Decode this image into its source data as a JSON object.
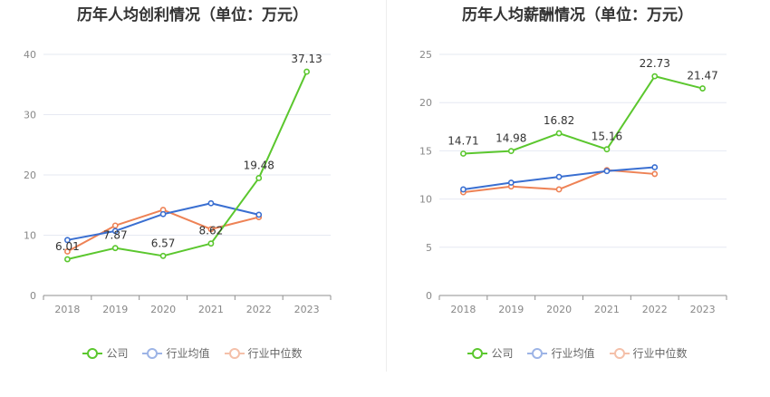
{
  "charts": [
    {
      "title": "历年人均创利情况（单位：万元）",
      "legend": [
        "公司",
        "行业均值",
        "行业中位数"
      ]
    },
    {
      "title": "历年人均薪酬情况（单位：万元）",
      "legend": [
        "公司",
        "行业均值",
        "行业中位数"
      ]
    }
  ],
  "colors": {
    "company": "#5bc72e",
    "avg": "#3a6fd1",
    "median": "#ee8255"
  },
  "chart_data": [
    {
      "type": "line",
      "title": "历年人均创利情况（单位：万元）",
      "categories": [
        "2018",
        "2019",
        "2020",
        "2021",
        "2022",
        "2023"
      ],
      "ylim": [
        0,
        40
      ],
      "yticks": [
        0,
        10,
        20,
        30,
        40
      ],
      "grid": true,
      "legend_position": "bottom",
      "series": [
        {
          "name": "公司",
          "values": [
            6.01,
            7.87,
            6.57,
            8.62,
            19.48,
            37.13
          ],
          "labels": [
            "6.01",
            "7.87",
            "6.57",
            "8.62",
            "19.48",
            "37.13"
          ]
        },
        {
          "name": "行业均值",
          "values": [
            9.2,
            10.7,
            13.5,
            15.3,
            13.4,
            null
          ]
        },
        {
          "name": "行业中位数",
          "values": [
            7.3,
            11.6,
            14.2,
            11.0,
            13.0,
            null
          ]
        }
      ]
    },
    {
      "type": "line",
      "title": "历年人均薪酬情况（单位：万元）",
      "categories": [
        "2018",
        "2019",
        "2020",
        "2021",
        "2022",
        "2023"
      ],
      "ylim": [
        0,
        25
      ],
      "yticks": [
        0,
        5,
        10,
        15,
        20,
        25
      ],
      "grid": true,
      "legend_position": "bottom",
      "series": [
        {
          "name": "公司",
          "values": [
            14.71,
            14.98,
            16.82,
            15.16,
            22.73,
            21.47
          ],
          "labels": [
            "14.71",
            "14.98",
            "16.82",
            "15.16",
            "22.73",
            "21.47"
          ]
        },
        {
          "name": "行业均值",
          "values": [
            11.0,
            11.7,
            12.3,
            12.9,
            13.3,
            null
          ]
        },
        {
          "name": "行业中位数",
          "values": [
            10.7,
            11.3,
            11.0,
            13.0,
            12.6,
            null
          ]
        }
      ]
    }
  ]
}
